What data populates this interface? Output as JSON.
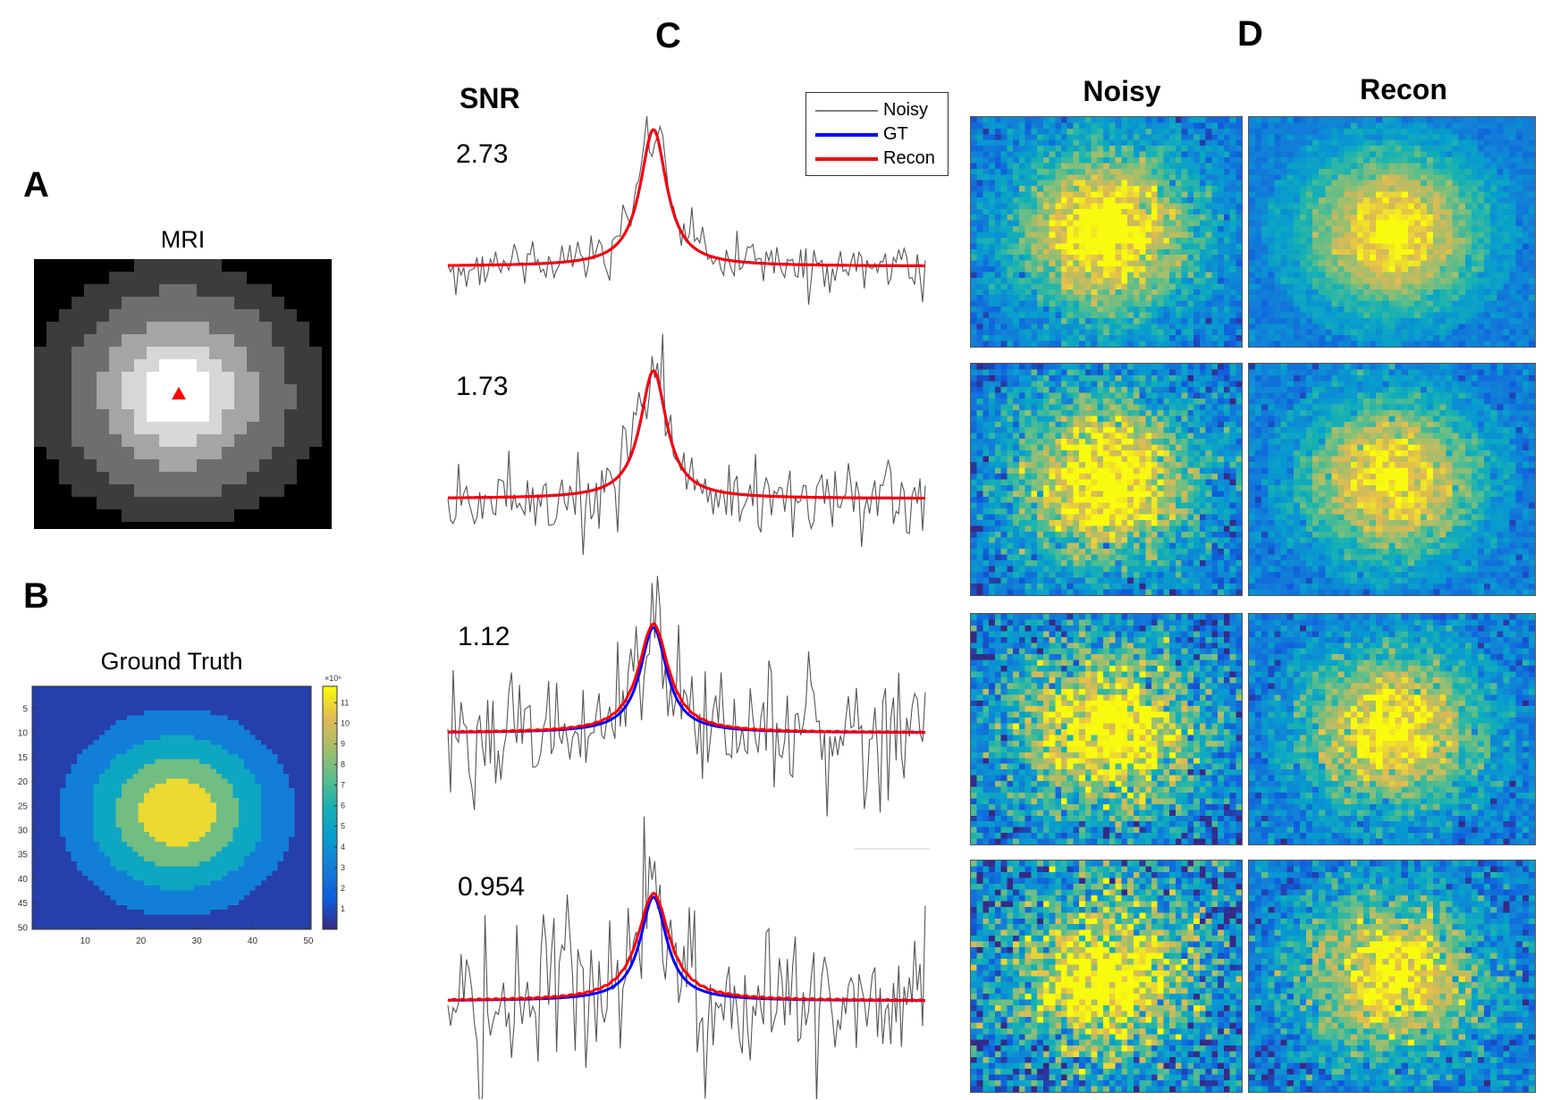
{
  "panels": {
    "a": {
      "letter": "A",
      "title": "MRI"
    },
    "b": {
      "letter": "B",
      "title": "Ground Truth"
    },
    "c": {
      "letter": "C",
      "snr_header": "SNR"
    },
    "d": {
      "letter": "D",
      "col_noisy": "Noisy",
      "col_recon": "Recon"
    }
  },
  "colors": {
    "noisy": "#555555",
    "gt": "#0000ff",
    "recon": "#ff0000",
    "marker": "#ff0000"
  },
  "chart_data": [
    {
      "type": "heatmap",
      "id": "mri",
      "title": "MRI",
      "colormap": "gray",
      "rings": [
        1.0,
        0.75,
        0.55,
        0.35,
        0.2
      ],
      "marker": "red-triangle-center"
    },
    {
      "type": "heatmap",
      "id": "ground_truth",
      "title": "Ground Truth",
      "colormap": "parula",
      "xticks": [
        10,
        20,
        30,
        40,
        50
      ],
      "yticks": [
        5,
        10,
        15,
        20,
        25,
        30,
        35,
        40,
        45,
        50
      ],
      "grid_size": [
        50,
        50
      ],
      "colorbar": {
        "ticks": [
          1,
          2,
          3,
          4,
          5,
          6,
          7,
          8,
          9,
          10,
          11
        ],
        "multiplier": "×10⁶",
        "range": [
          0,
          11.8
        ]
      },
      "ring_levels": [
        0.6,
        3.0,
        5.2,
        7.8,
        11.0
      ]
    },
    {
      "type": "line",
      "id": "spectra",
      "legend": {
        "entries": [
          "Noisy",
          "GT",
          "Recon"
        ],
        "placement": "top-right"
      },
      "rows": [
        {
          "snr": "2.73",
          "noise_amp": 0.14,
          "peak": 1.0,
          "recon_shift": 0.0
        },
        {
          "snr": "1.73",
          "noise_amp": 0.22,
          "peak": 1.0,
          "recon_shift": 0.0
        },
        {
          "snr": "1.12",
          "noise_amp": 0.34,
          "peak": 1.0,
          "recon_shift": 0.4
        },
        {
          "snr": "0.954",
          "noise_amp": 0.42,
          "peak": 0.9,
          "recon_shift": 0.6
        }
      ]
    },
    {
      "type": "heatmap",
      "id": "noisy_recon_maps",
      "colormap": "parula",
      "columns": [
        "Noisy",
        "Recon"
      ],
      "grid_size": [
        45,
        40
      ],
      "rows": [
        {
          "snr": "2.73",
          "noisy_noise": 0.1,
          "recon_noise": 0.05
        },
        {
          "snr": "1.73",
          "noisy_noise": 0.14,
          "recon_noise": 0.08
        },
        {
          "snr": "1.12",
          "noisy_noise": 0.18,
          "recon_noise": 0.1
        },
        {
          "snr": "0.954",
          "noisy_noise": 0.22,
          "recon_noise": 0.13
        }
      ]
    }
  ]
}
